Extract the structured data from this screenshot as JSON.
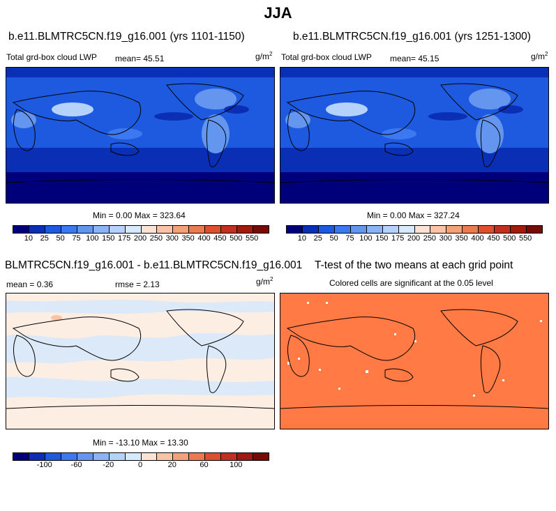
{
  "season": "JJA",
  "panel1": {
    "case": "b.e11.BLMTRC5CN.f19_g16.001 (yrs 1101-1150)",
    "variable": "Total grd-box cloud LWP",
    "mean_label": "mean=",
    "mean_value": "45.51",
    "units": "g/m",
    "units_exp": "2",
    "minmax": "Min =  0.00 Max = 323.64"
  },
  "panel2": {
    "case": "b.e11.BLMTRC5CN.f19_g16.001 (yrs 1251-1300)",
    "variable": "Total grd-box cloud LWP",
    "mean_label": "mean=",
    "mean_value": "45.15",
    "units": "g/m",
    "units_exp": "2",
    "minmax": "Min =  0.00 Max = 327.24"
  },
  "panel3": {
    "case": "BLMTRC5CN.f19_g16.001 - b.e11.BLMTRC5CN.f19_g16.001",
    "mean_label": "mean =",
    "mean_value": "0.36",
    "rmse_label": "rmse =",
    "rmse_value": "2.13",
    "units": "g/m",
    "units_exp": "2",
    "minmax": "Min = -13.10 Max =  13.30"
  },
  "panel4": {
    "title": "T-test of the two means at each grid point",
    "subtitle": "Colored cells are significant at the 0.05 level"
  },
  "colorbar_abs": {
    "colors": [
      "#00007a",
      "#0a2fb4",
      "#1e5ae0",
      "#3c78f0",
      "#6496f0",
      "#8cb4f5",
      "#b4d2fa",
      "#d7e9fc",
      "#fbe2d2",
      "#f9c3a5",
      "#f4a078",
      "#ec7a50",
      "#dc5030",
      "#c03020",
      "#a01a10",
      "#780a05"
    ],
    "labels": [
      "10",
      "25",
      "50",
      "75",
      "100",
      "150",
      "175",
      "200",
      "250",
      "300",
      "350",
      "400",
      "450",
      "500",
      "550"
    ]
  },
  "colorbar_diff": {
    "colors": [
      "#00007a",
      "#0a2fb4",
      "#1e5ae0",
      "#3c78f0",
      "#6496f0",
      "#8cb4f5",
      "#b4d2fa",
      "#d7e9fc",
      "#fbe2d2",
      "#f9c3a5",
      "#f4a078",
      "#ec7a50",
      "#dc5030",
      "#c03020",
      "#a01a10",
      "#780a05"
    ],
    "labels": [
      "-100",
      "-60",
      "-20",
      "0",
      "20",
      "60",
      "100"
    ]
  },
  "colors": {
    "lwp_background": "#1e5ae0",
    "lwp_dark": "#00007a",
    "lwp_mid": "#0a2fb4",
    "lwp_light": "#6496f0",
    "lwp_pale": "#b4d2fa",
    "diff_background": "#fdeee3",
    "diff_pale_blue": "#dbe9f8",
    "ttest_fill": "#ff7a45"
  }
}
